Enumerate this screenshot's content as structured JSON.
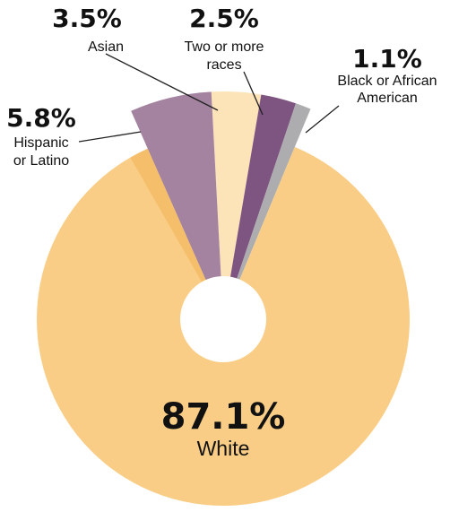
{
  "chart_data": {
    "type": "pie",
    "title": "",
    "slices": [
      {
        "label": "White",
        "label_lines": [
          "White"
        ],
        "value": 87.1,
        "display": "87.1%",
        "color": "#F9CD85"
      },
      {
        "label": "Hispanic or Latino",
        "label_lines": [
          "Hispanic",
          "or Latino"
        ],
        "value": 5.8,
        "display": "5.8%",
        "color": "#A3839F"
      },
      {
        "label": "Asian",
        "label_lines": [
          "Asian"
        ],
        "value": 3.5,
        "display": "3.5%",
        "color": "#FDE3B8"
      },
      {
        "label": "Two or more races",
        "label_lines": [
          "Two or more",
          "races"
        ],
        "value": 2.5,
        "display": "2.5%",
        "color": "#7E5480"
      },
      {
        "label": "Black or African American",
        "label_lines": [
          "Black or African",
          "American"
        ],
        "value": 1.1,
        "display": "1.1%",
        "color": "#ADADAF"
      }
    ],
    "accent_color": "#EFA33A"
  }
}
